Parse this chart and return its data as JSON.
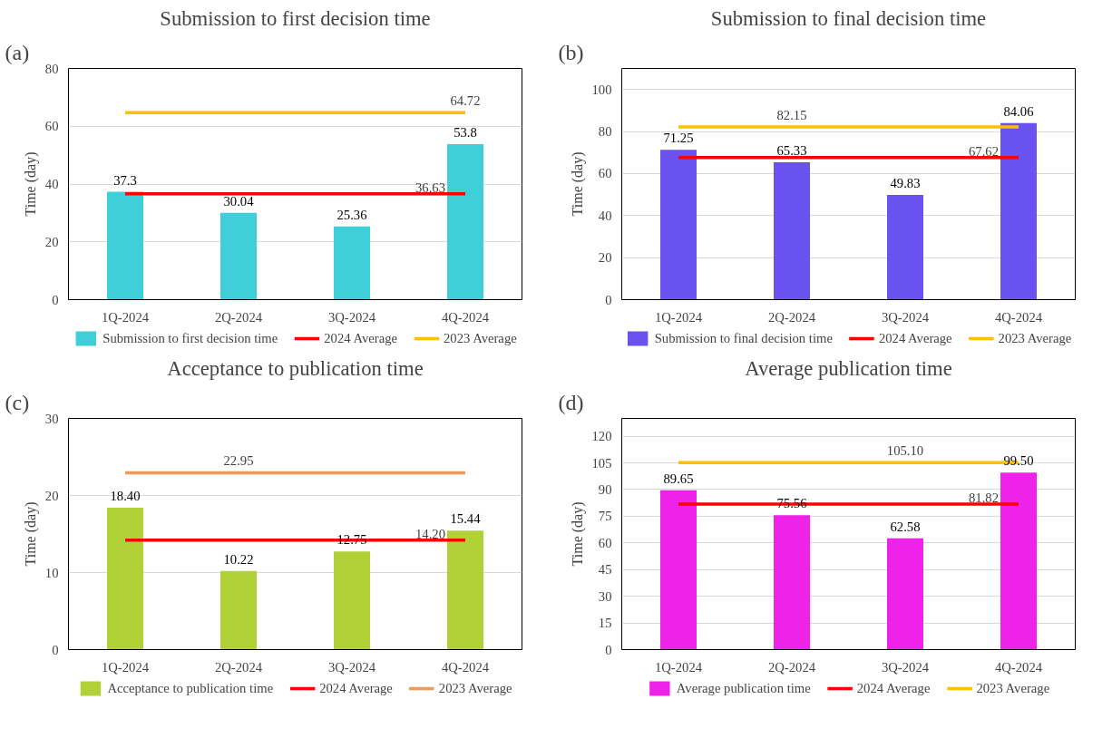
{
  "chart_data": [
    {
      "type": "bar",
      "title": "Submission to first decision time",
      "ylabel": "Time (day)",
      "annotations": [
        "(a)"
      ],
      "categories": [
        "1Q-2024",
        "2Q-2024",
        "3Q-2024",
        "4Q-2024"
      ],
      "ylim": [
        0,
        80
      ],
      "yticks": [
        0,
        20,
        40,
        60,
        80
      ],
      "grid": "y",
      "legend": "bottom",
      "series": [
        {
          "name": "Submission to first decision time",
          "color": "#3ecfd8",
          "values": [
            37.3,
            30.04,
            25.36,
            53.8
          ],
          "value_labels": [
            "37.3",
            "30.04",
            "25.36",
            "53.8"
          ]
        },
        {
          "name": "2024 Average",
          "type": "line",
          "color": "#ff0000",
          "values": [
            36.63,
            36.63,
            36.63,
            36.63
          ],
          "value_labels": [
            null,
            null,
            null,
            "36.63"
          ]
        },
        {
          "name": "2023 Average",
          "type": "line",
          "color": "#ffc000",
          "values": [
            64.72,
            64.72,
            64.72,
            64.72
          ],
          "value_labels": [
            null,
            null,
            null,
            "64.72"
          ]
        }
      ]
    },
    {
      "type": "bar",
      "title": "Submission to final decision time",
      "ylabel": "Time (day)",
      "annotations": [
        "(b)"
      ],
      "categories": [
        "1Q-2024",
        "2Q-2024",
        "3Q-2024",
        "4Q-2024"
      ],
      "ylim": [
        0,
        110
      ],
      "yticks": [
        0,
        20,
        40,
        60,
        80,
        100
      ],
      "grid": "y",
      "legend": "bottom",
      "series": [
        {
          "name": "Submission to final decision time",
          "color": "#6a52f0",
          "values": [
            71.25,
            65.33,
            49.83,
            84.06
          ],
          "value_labels": [
            "71.25",
            "65.33",
            "49.83",
            "84.06"
          ]
        },
        {
          "name": "2024 Average",
          "type": "line",
          "color": "#ff0000",
          "values": [
            67.62,
            67.62,
            67.62,
            67.62
          ],
          "value_labels": [
            null,
            null,
            null,
            "67.62"
          ]
        },
        {
          "name": "2023 Average",
          "type": "line",
          "color": "#ffc000",
          "values": [
            82.15,
            82.15,
            82.15,
            82.15
          ],
          "value_labels": [
            null,
            "82.15",
            null,
            null
          ]
        }
      ]
    },
    {
      "type": "bar",
      "title": "Acceptance to publication time",
      "ylabel": "Time (day)",
      "annotations": [
        "(c)"
      ],
      "categories": [
        "1Q-2024",
        "2Q-2024",
        "3Q-2024",
        "4Q-2024"
      ],
      "ylim": [
        0,
        30
      ],
      "yticks": [
        0,
        10,
        20,
        30
      ],
      "grid": "y",
      "legend": "bottom",
      "series": [
        {
          "name": "Acceptance to publication time",
          "color": "#b0d236",
          "values": [
            18.4,
            10.22,
            12.75,
            15.44
          ],
          "value_labels": [
            "18.40",
            "10.22",
            "12.75",
            "15.44"
          ]
        },
        {
          "name": "2024 Average",
          "type": "line",
          "color": "#ff0000",
          "values": [
            14.2,
            14.2,
            14.2,
            14.2
          ],
          "value_labels": [
            null,
            null,
            null,
            "14.20"
          ]
        },
        {
          "name": "2023 Average",
          "type": "line",
          "color": "#f09a5a",
          "values": [
            22.95,
            22.95,
            22.95,
            22.95
          ],
          "value_labels": [
            null,
            "22.95",
            null,
            null
          ]
        }
      ]
    },
    {
      "type": "bar",
      "title": "Average publication time",
      "ylabel": "Time (day)",
      "annotations": [
        "(d)"
      ],
      "categories": [
        "1Q-2024",
        "2Q-2024",
        "3Q-2024",
        "4Q-2024"
      ],
      "ylim": [
        0,
        130
      ],
      "yticks": [
        0,
        15,
        30,
        45,
        60,
        75,
        90,
        105,
        120
      ],
      "grid": "y",
      "legend": "bottom",
      "series": [
        {
          "name": "Average publication time",
          "color": "#ee22e8",
          "values": [
            89.65,
            75.56,
            62.58,
            99.5
          ],
          "value_labels": [
            "89.65",
            "75.56",
            "62.58",
            "99.50"
          ]
        },
        {
          "name": "2024 Average",
          "type": "line",
          "color": "#ff0000",
          "values": [
            81.82,
            81.82,
            81.82,
            81.82
          ],
          "value_labels": [
            null,
            null,
            null,
            "81.82"
          ]
        },
        {
          "name": "2023 Average",
          "type": "line",
          "color": "#ffc000",
          "values": [
            105.1,
            105.1,
            105.1,
            105.1
          ],
          "value_labels": [
            null,
            null,
            "105.10",
            null
          ]
        }
      ]
    }
  ]
}
